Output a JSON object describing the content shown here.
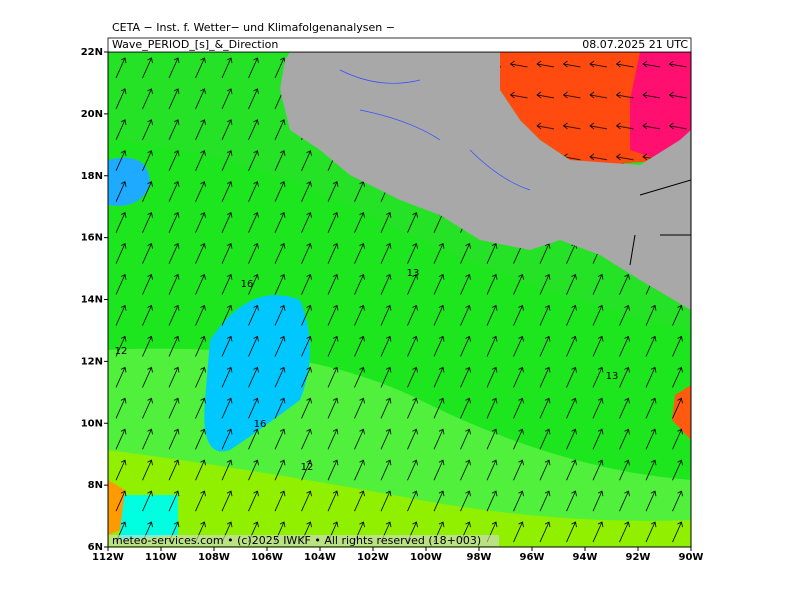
{
  "header": {
    "institute": "CETA − Inst. f. Wetter− und Klimafolgenanalysen −",
    "title": "Wave_PERIOD_[s]_&_Direction",
    "datetime": "08.07.2025  21 UTC"
  },
  "footer": {
    "credit": "meteo-services.com • (c)2025 IWKF • All rights reserved (18+003)"
  },
  "map": {
    "lon_range": [
      -112,
      -90
    ],
    "lat_range": [
      6,
      22
    ],
    "lon_ticks": [
      {
        "value": -112,
        "label": "112W"
      },
      {
        "value": -110,
        "label": "110W"
      },
      {
        "value": -108,
        "label": "108W"
      },
      {
        "value": -106,
        "label": "106W"
      },
      {
        "value": -104,
        "label": "104W"
      },
      {
        "value": -102,
        "label": "102W"
      },
      {
        "value": -100,
        "label": "100W"
      },
      {
        "value": -98,
        "label": "98W"
      },
      {
        "value": -96,
        "label": "96W"
      },
      {
        "value": -94,
        "label": "94W"
      },
      {
        "value": -92,
        "label": "92W"
      },
      {
        "value": -90,
        "label": "90W"
      }
    ],
    "lat_ticks": [
      {
        "value": 22,
        "label": "22N"
      },
      {
        "value": 20,
        "label": "20N"
      },
      {
        "value": 18,
        "label": "18N"
      },
      {
        "value": 16,
        "label": "16N"
      },
      {
        "value": 14,
        "label": "14N"
      },
      {
        "value": 12,
        "label": "12N"
      },
      {
        "value": 10,
        "label": "10N"
      },
      {
        "value": 8,
        "label": "8N"
      },
      {
        "value": 6,
        "label": "6N"
      }
    ],
    "contour_labels": [
      "13",
      "13",
      "12",
      "12",
      "16",
      "16"
    ]
  }
}
